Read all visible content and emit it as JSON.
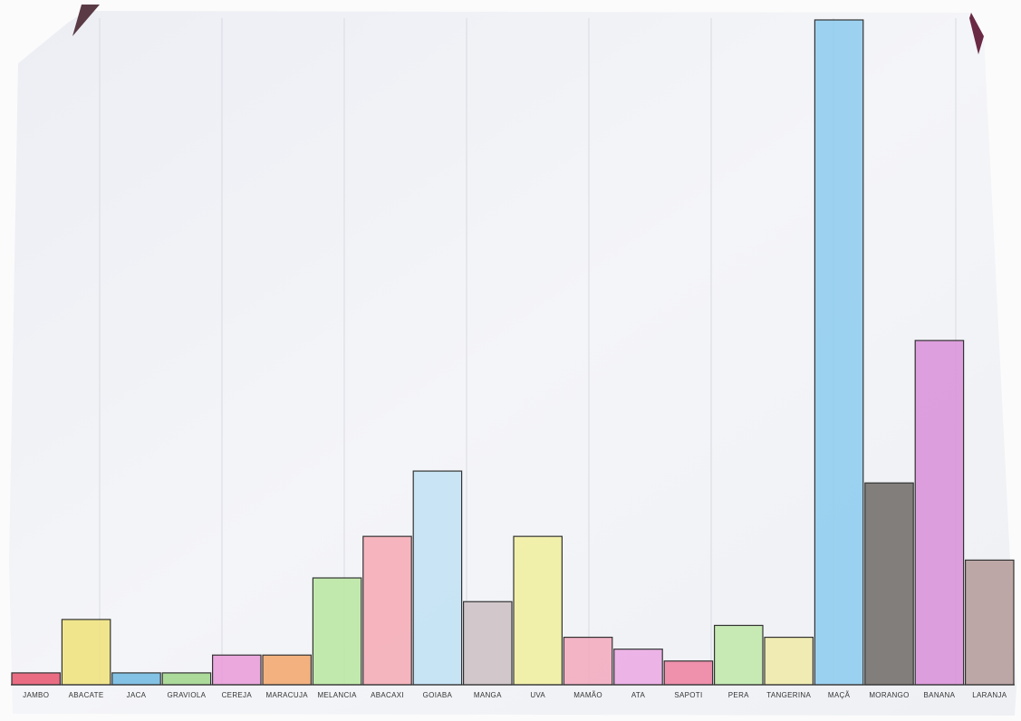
{
  "chart_data": {
    "type": "bar",
    "categories": [
      "JAMBO",
      "ABACATE",
      "JACA",
      "GRAVIOLA",
      "CEREJA",
      "MARACUJA",
      "MELANCIA",
      "ABACAXI",
      "GOIABA",
      "MANGA",
      "UVA",
      "MAMÃO",
      "ATA",
      "SAPOTI",
      "PERA",
      "TANGERINA",
      "MAÇÃ",
      "MORANGO",
      "BANANA",
      "LARANJA"
    ],
    "values": [
      1,
      5.5,
      1,
      1,
      2.5,
      2.5,
      9,
      12.5,
      18,
      7,
      12.5,
      4,
      3,
      2,
      5,
      4,
      56,
      17,
      29,
      10.5
    ],
    "colors": [
      "#e8546e",
      "#eee27a",
      "#6fb8e0",
      "#9fd58a",
      "#e79ad8",
      "#f2a56a",
      "#b9e6a0",
      "#f6a9b4",
      "#bfe0f5",
      "#cdbfc4",
      "#f1ef9e",
      "#f3a8bd",
      "#eba8e4",
      "#ee7fa0",
      "#bfe9a8",
      "#eeeaa6",
      "#8ccbef",
      "#6f6a66",
      "#d98fd8",
      "#b49a98"
    ]
  }
}
